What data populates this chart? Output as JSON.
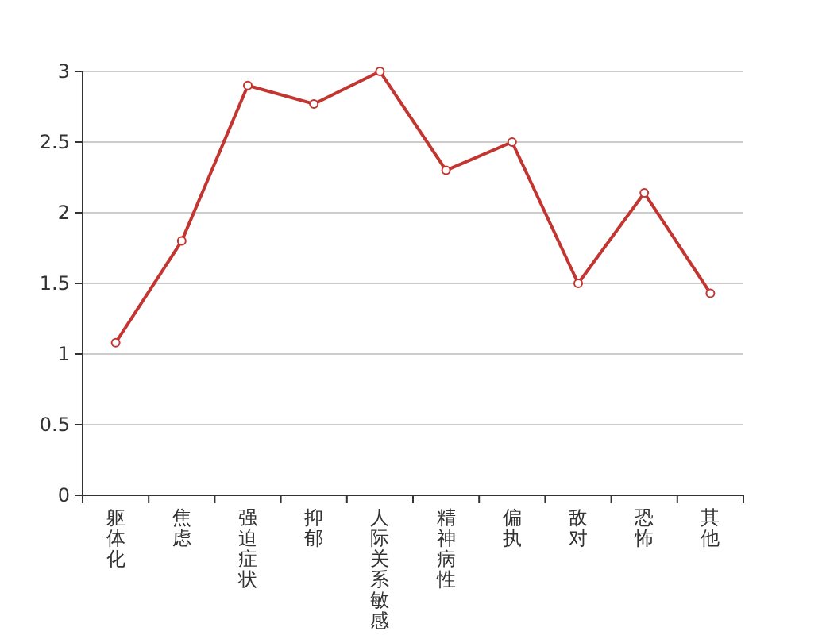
{
  "chart_data": {
    "type": "line",
    "categories": [
      "躯体化",
      "焦虑",
      "强迫症状",
      "抑郁",
      "人际关系敏感",
      "精神病性",
      "偏执",
      "敌对",
      "恐怖",
      "其他"
    ],
    "series": [
      {
        "color": "#c23531",
        "values": [
          1.08,
          1.8,
          2.9,
          2.77,
          3.0,
          2.3,
          2.5,
          1.5,
          2.14,
          1.43
        ]
      }
    ],
    "ylim": [
      0,
      3
    ],
    "yticks": [
      0,
      {
        "value": 0.5,
        "label": "0.5"
      },
      1,
      {
        "value": 1.5,
        "label": "1.5"
      },
      2,
      {
        "value": 2.5,
        "label": "2.5"
      },
      3
    ],
    "grid": "y",
    "marker": "circle",
    "line_style": "solid"
  }
}
